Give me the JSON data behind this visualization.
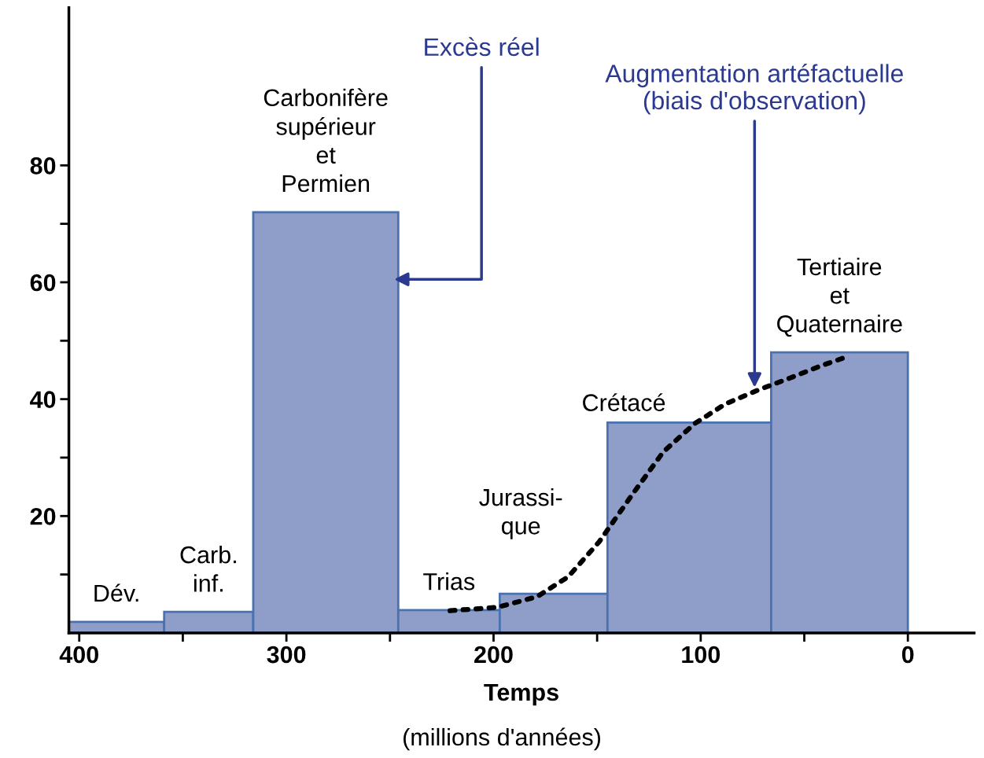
{
  "chart_data": {
    "type": "histogram",
    "xlabel": "Temps",
    "bins": [
      405,
      359,
      316,
      246,
      197,
      145,
      66,
      0
    ],
    "values": [
      1.9,
      3.6,
      72,
      3.9,
      6.7,
      36,
      48
    ],
    "color": "#8f9dc9",
    "series": [
      {
        "type": "line",
        "color": "#000000",
        "line_style": "dotted",
        "x": [
          221,
          198,
          179,
          164,
          149,
          133,
          118,
          103,
          88,
          72,
          57,
          42,
          29
        ],
        "values": [
          3.8,
          4.4,
          6.2,
          9.6,
          15.6,
          23.7,
          31,
          35.8,
          39.2,
          41.6,
          43.6,
          45.7,
          47.3
        ]
      }
    ],
    "xlim": [
      405,
      -32
    ],
    "ylim": [
      0,
      107
    ],
    "xticks": [
      400,
      {
        "value": 350,
        "label": null
      },
      300,
      {
        "value": 250,
        "label": null
      },
      200,
      {
        "value": 150,
        "label": null
      },
      100,
      {
        "value": 50,
        "label": null
      },
      0
    ],
    "yticks": [
      {
        "value": 10,
        "label": null
      },
      20,
      {
        "value": 30,
        "label": null
      },
      40,
      {
        "value": 50,
        "label": null
      },
      60,
      {
        "value": 70,
        "label": null
      },
      80
    ],
    "grid": false,
    "annotations": [
      "Dév.",
      "Carb.\ninf.",
      "Carbonifère\nsupérieur\net\nPermien",
      "Trias",
      "Jurassi-\nque",
      "Crétacé",
      "Tertiaire\net\nQuaternaire",
      {
        "text": "Excès réel",
        "x": 248,
        "y": 60.5
      },
      {
        "text": "Augmentation artéfactuelle\n(biais d'observation)",
        "x": 74,
        "y": 42
      },
      "(millions d'années)"
    ]
  }
}
